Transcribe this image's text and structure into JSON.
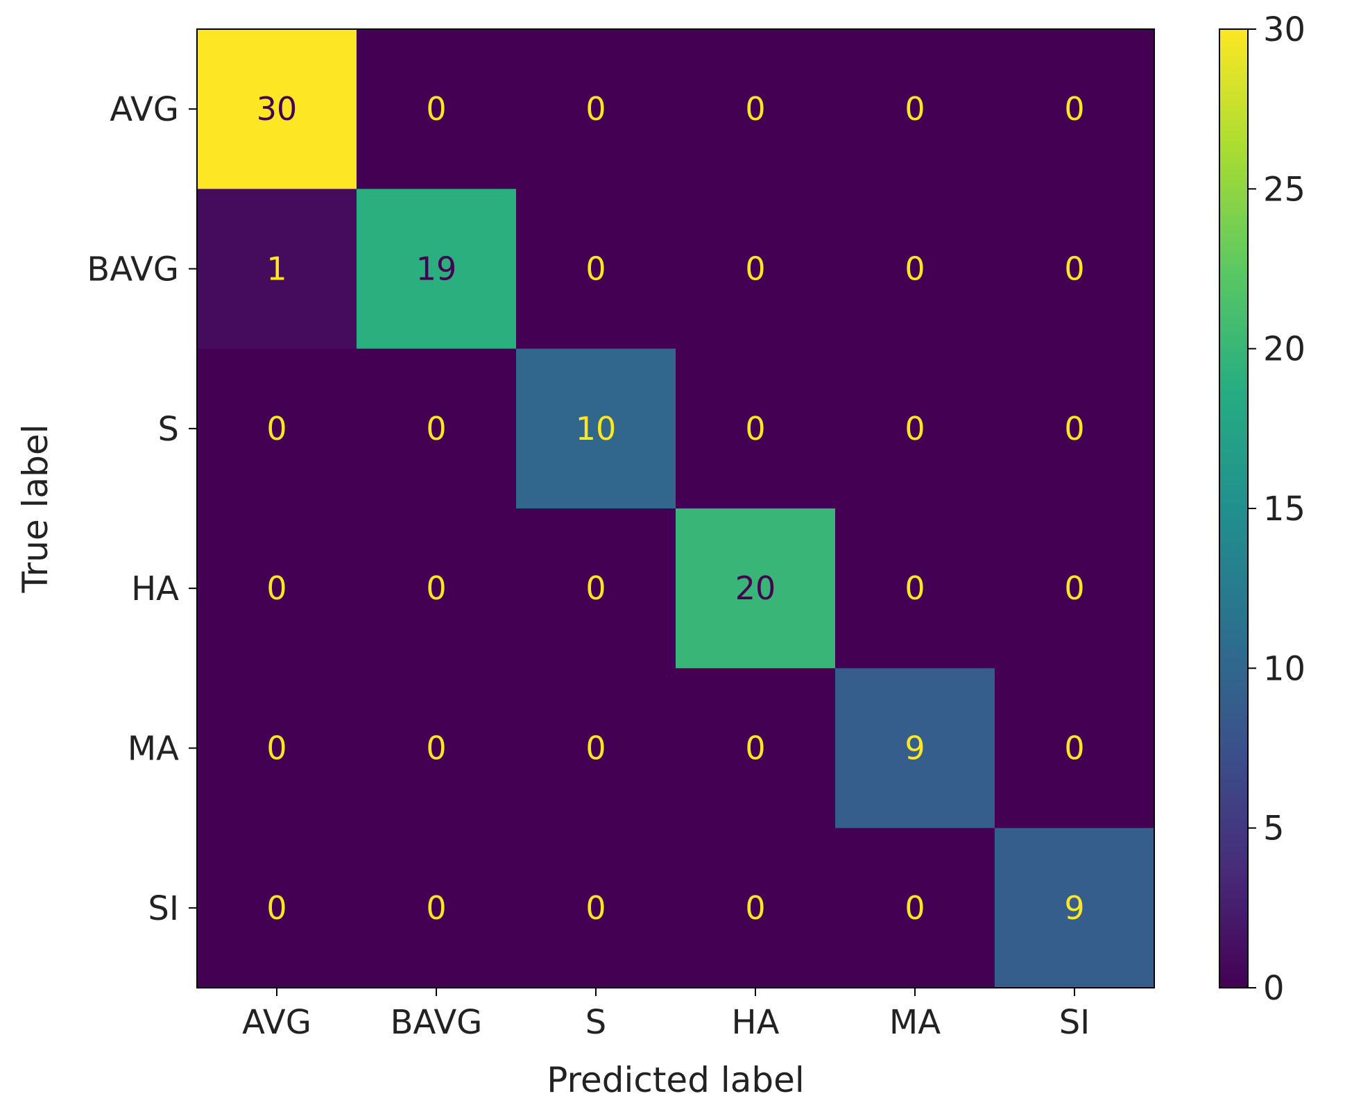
{
  "chart_data": {
    "type": "heatmap",
    "title": "",
    "xlabel": "Predicted label",
    "ylabel": "True label",
    "x_categories": [
      "AVG",
      "BAVG",
      "S",
      "HA",
      "MA",
      "SI"
    ],
    "y_categories": [
      "AVG",
      "BAVG",
      "S",
      "HA",
      "MA",
      "SI"
    ],
    "values": [
      [
        30,
        0,
        0,
        0,
        0,
        0
      ],
      [
        1,
        19,
        0,
        0,
        0,
        0
      ],
      [
        0,
        0,
        10,
        0,
        0,
        0
      ],
      [
        0,
        0,
        0,
        20,
        0,
        0
      ],
      [
        0,
        0,
        0,
        0,
        9,
        0
      ],
      [
        0,
        0,
        0,
        0,
        0,
        9
      ]
    ],
    "colormap": "viridis",
    "vmin": 0,
    "vmax": 30,
    "colorbar_ticks": [
      0,
      5,
      10,
      15,
      20,
      25,
      30
    ],
    "text_color_light": "#fde725",
    "text_color_dark": "#440154"
  }
}
